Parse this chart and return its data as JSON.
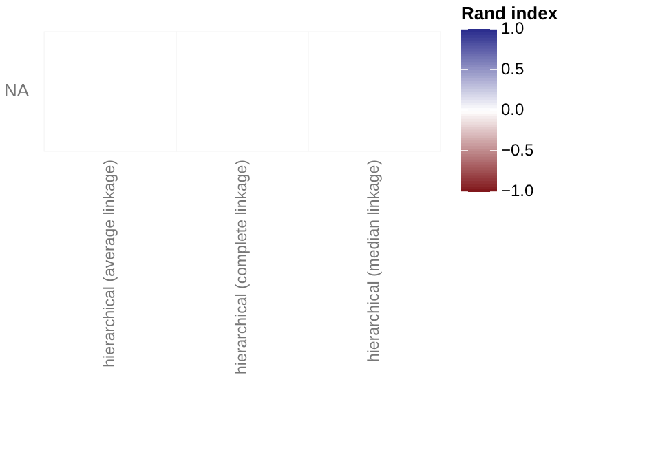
{
  "chart_data": {
    "type": "heatmap",
    "clabel": "Rand index",
    "categories": [
      "hierarchical (average linkage)",
      "hierarchical (complete linkage)",
      "hierarchical (median linkage)"
    ],
    "y_categories": [
      "NA"
    ],
    "cells": [
      [
        0,
        0,
        0
      ]
    ],
    "clim": [
      -1,
      1
    ],
    "cticks": [
      {
        "value": -1,
        "label": "−1.0"
      },
      {
        "value": -0.5,
        "label": "−0.5"
      },
      {
        "value": 0,
        "label": "0.0"
      },
      {
        "value": 0.5,
        "label": "0.5"
      },
      {
        "value": 1,
        "label": "1.0"
      }
    ]
  }
}
